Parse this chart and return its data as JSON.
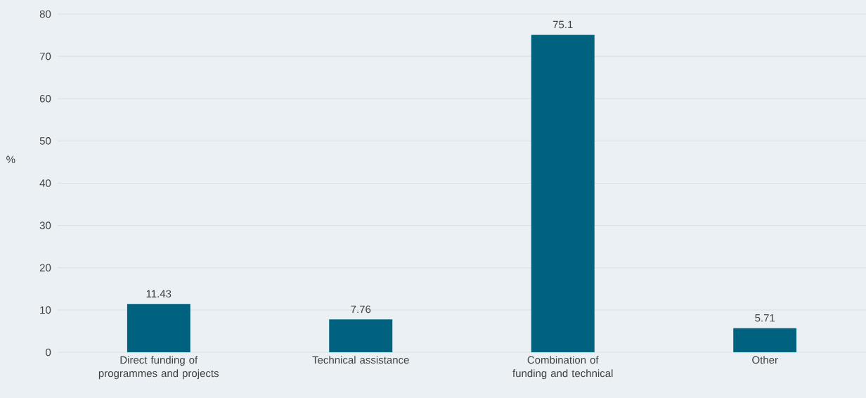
{
  "chart_data": {
    "type": "bar",
    "ylabel": "%",
    "categories": [
      "Direct funding of programmes and projects",
      "Technical assistance",
      "Combination of funding and technical",
      "Other"
    ],
    "values": [
      11.43,
      7.76,
      75.1,
      5.71
    ],
    "color": "#00627f",
    "ylim": [
      0,
      80
    ],
    "yticks": [
      0,
      10,
      20,
      30,
      40,
      50,
      60,
      70,
      80
    ],
    "grid": "y",
    "data_labels": true
  }
}
